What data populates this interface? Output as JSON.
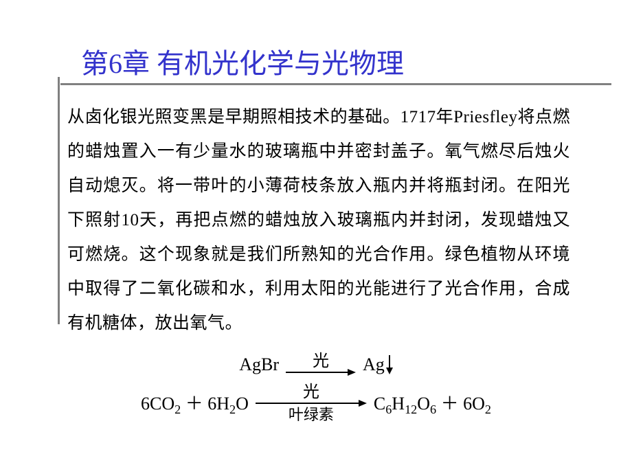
{
  "colors": {
    "title": "#3333cc",
    "underline": "#808080",
    "text": "#000000",
    "background": "#ffffff"
  },
  "typography": {
    "title_fontsize": 40,
    "body_fontsize": 25,
    "eq_fontsize": 26,
    "body_lineheight": 2.0
  },
  "title": "第6章 有机光化学与光物理",
  "body": "从卤化银光照变黑是早期照相技术的基础。1717年Priesfley将点燃的蜡烛置入一有少量水的玻璃瓶中并密封盖子。氧气燃尽后烛火自动熄灭。将一带叶的小薄荷枝条放入瓶内并将瓶封闭。在阳光下照射10天，再把点燃的蜡烛放入玻璃瓶内并封闭，发现蜡烛又可燃烧。这个现象就是我们所熟知的光合作用。绿色植物从环境中取得了二氧化碳和水，利用太阳的光能进行了光合作用，合成有机糖体，放出氧气。",
  "equations": [
    {
      "left": "AgBr",
      "arrow_top": "光",
      "arrow_bottom": "",
      "arrow_width": 90,
      "right": "Ag",
      "right_precipitate": true
    },
    {
      "left": "6CO₂ ＋ 6H₂O",
      "arrow_top": "光",
      "arrow_bottom": "叶绿素",
      "arrow_width": 150,
      "right": "C₆H₁₂O₆ ＋ 6O₂",
      "right_precipitate": false
    }
  ]
}
